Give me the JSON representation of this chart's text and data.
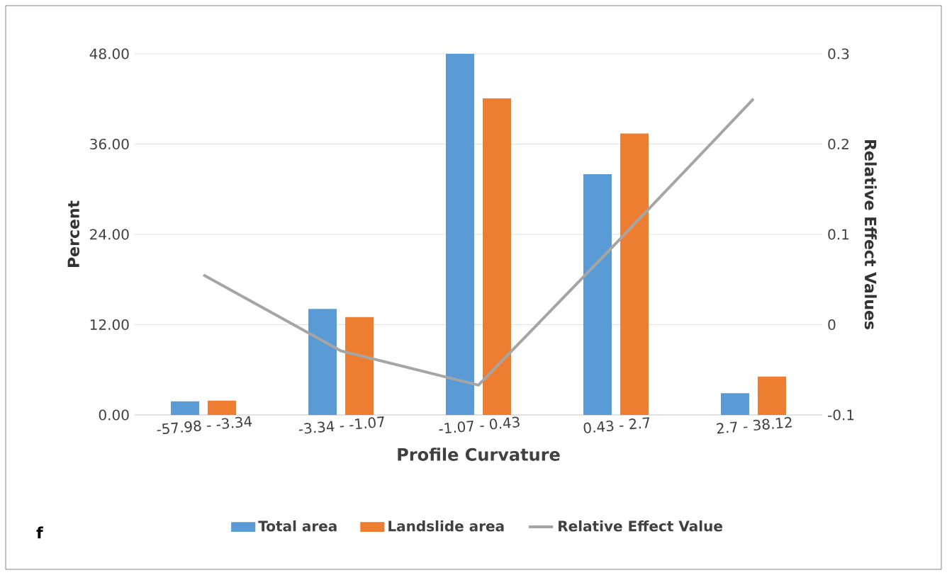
{
  "chart_data": {
    "type": "bar",
    "xlabel": "Profile Curvature",
    "ylabel": "Percent",
    "y2label": "Relative Effect Values",
    "categories": [
      "-57.98 - -3.34",
      "-3.34 - -1.07",
      "-1.07 - 0.43",
      "0.43 - 2.7",
      "2.7 - 38.12"
    ],
    "series": [
      {
        "name": "Total area",
        "color": "#5b9bd5",
        "values": [
          1.8,
          14.1,
          48.0,
          32.0,
          2.9
        ]
      },
      {
        "name": "Landslide area",
        "color": "#ed7d31",
        "values": [
          1.9,
          13.0,
          42.1,
          37.4,
          5.1
        ]
      },
      {
        "name": "Relative Effect Value",
        "color": "#a5a5a5",
        "type": "line",
        "axis": "y2",
        "values": [
          0.055,
          -0.029,
          -0.067,
          0.09,
          0.25
        ]
      }
    ],
    "ylim": [
      0,
      48
    ],
    "yticks": [
      {
        "value": 0,
        "label": "0.00"
      },
      {
        "value": 12,
        "label": "12.00"
      },
      {
        "value": 24,
        "label": "24.00"
      },
      {
        "value": 36,
        "label": "36.00"
      },
      {
        "value": 48,
        "label": "48.00"
      }
    ],
    "y2lim": [
      -0.1,
      0.3
    ],
    "y2ticks": [
      -0.1,
      0,
      0.1,
      0.2,
      0.3
    ],
    "grid": "y",
    "legend": "bottom",
    "marker": "none",
    "line_style": "solid",
    "annotations": [
      "f"
    ]
  }
}
